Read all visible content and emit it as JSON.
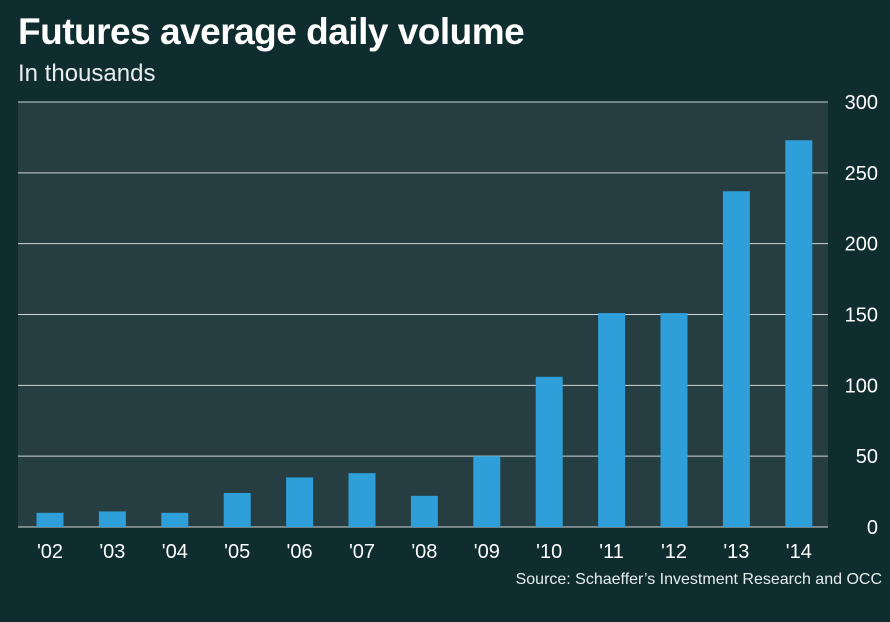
{
  "colors": {
    "background": "#0f2c2e",
    "plot_background": "#263e41",
    "bar": "#2e9fd9",
    "grid": "#cfd6d6"
  },
  "chart_data": {
    "type": "bar",
    "title": "Futures average daily volume",
    "subtitle": "In thousands",
    "xlabel": "",
    "ylabel": "",
    "categories": [
      "'02",
      "'03",
      "'04",
      "'05",
      "'06",
      "'07",
      "'08",
      "'09",
      "'10",
      "'11",
      "'12",
      "'13",
      "'14"
    ],
    "values": [
      10,
      11,
      10,
      24,
      35,
      38,
      22,
      50,
      106,
      151,
      151,
      237,
      273
    ],
    "ylim": [
      0,
      300
    ],
    "yticks": [
      "0",
      "50",
      "100",
      "150",
      "200",
      "250",
      "300"
    ],
    "grid": true,
    "y_axis_side": "right",
    "source": "Source: Schaeffer’s Investment Research and OCC"
  }
}
